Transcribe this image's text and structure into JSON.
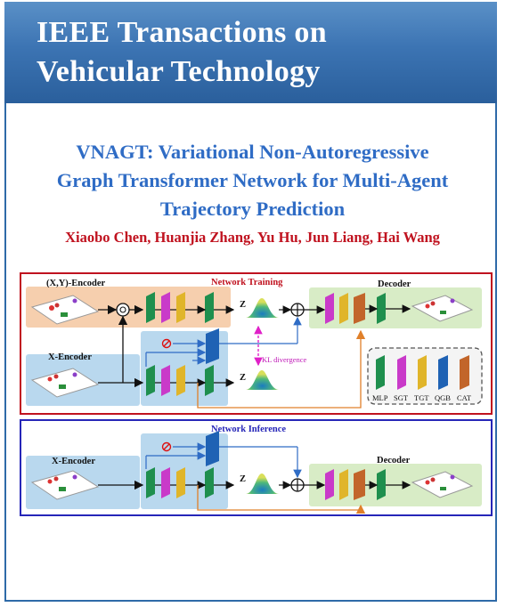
{
  "journal": {
    "line1": "IEEE Transactions on",
    "line2": "Vehicular Technology"
  },
  "paper": {
    "title_line1": "VNAGT: Variational Non-Autoregressive",
    "title_line2": "Graph Transformer Network for Multi-Agent",
    "title_line3": "Trajectory Prediction",
    "authors": "Xiaobo Chen, Huanjia Zhang, Yu Hu, Jun Liang, Hai Wang"
  },
  "figure": {
    "training": {
      "heading": "Network Training",
      "xy_encoder": "(X,Y)-Encoder",
      "x_encoder": "X-Encoder",
      "decoder": "Decoder",
      "z1": "Z",
      "z2": "Z",
      "kl": "KL divergence"
    },
    "legend": {
      "mlp": "MLP",
      "sgt": "SGT",
      "tgt": "TGT",
      "qgb": "QGB",
      "cat": "CAT"
    },
    "inference": {
      "heading": "Network Inference",
      "x_encoder": "X-Encoder",
      "decoder": "Decoder",
      "z": "Z"
    },
    "colors": {
      "mlp": "#1f8f4e",
      "sgt": "#c93ac9",
      "tgt": "#e0b52a",
      "qgb": "#1f62b4",
      "cat": "#c2652a",
      "training_border": "#c0121f",
      "inference_border": "#2626b8"
    }
  }
}
